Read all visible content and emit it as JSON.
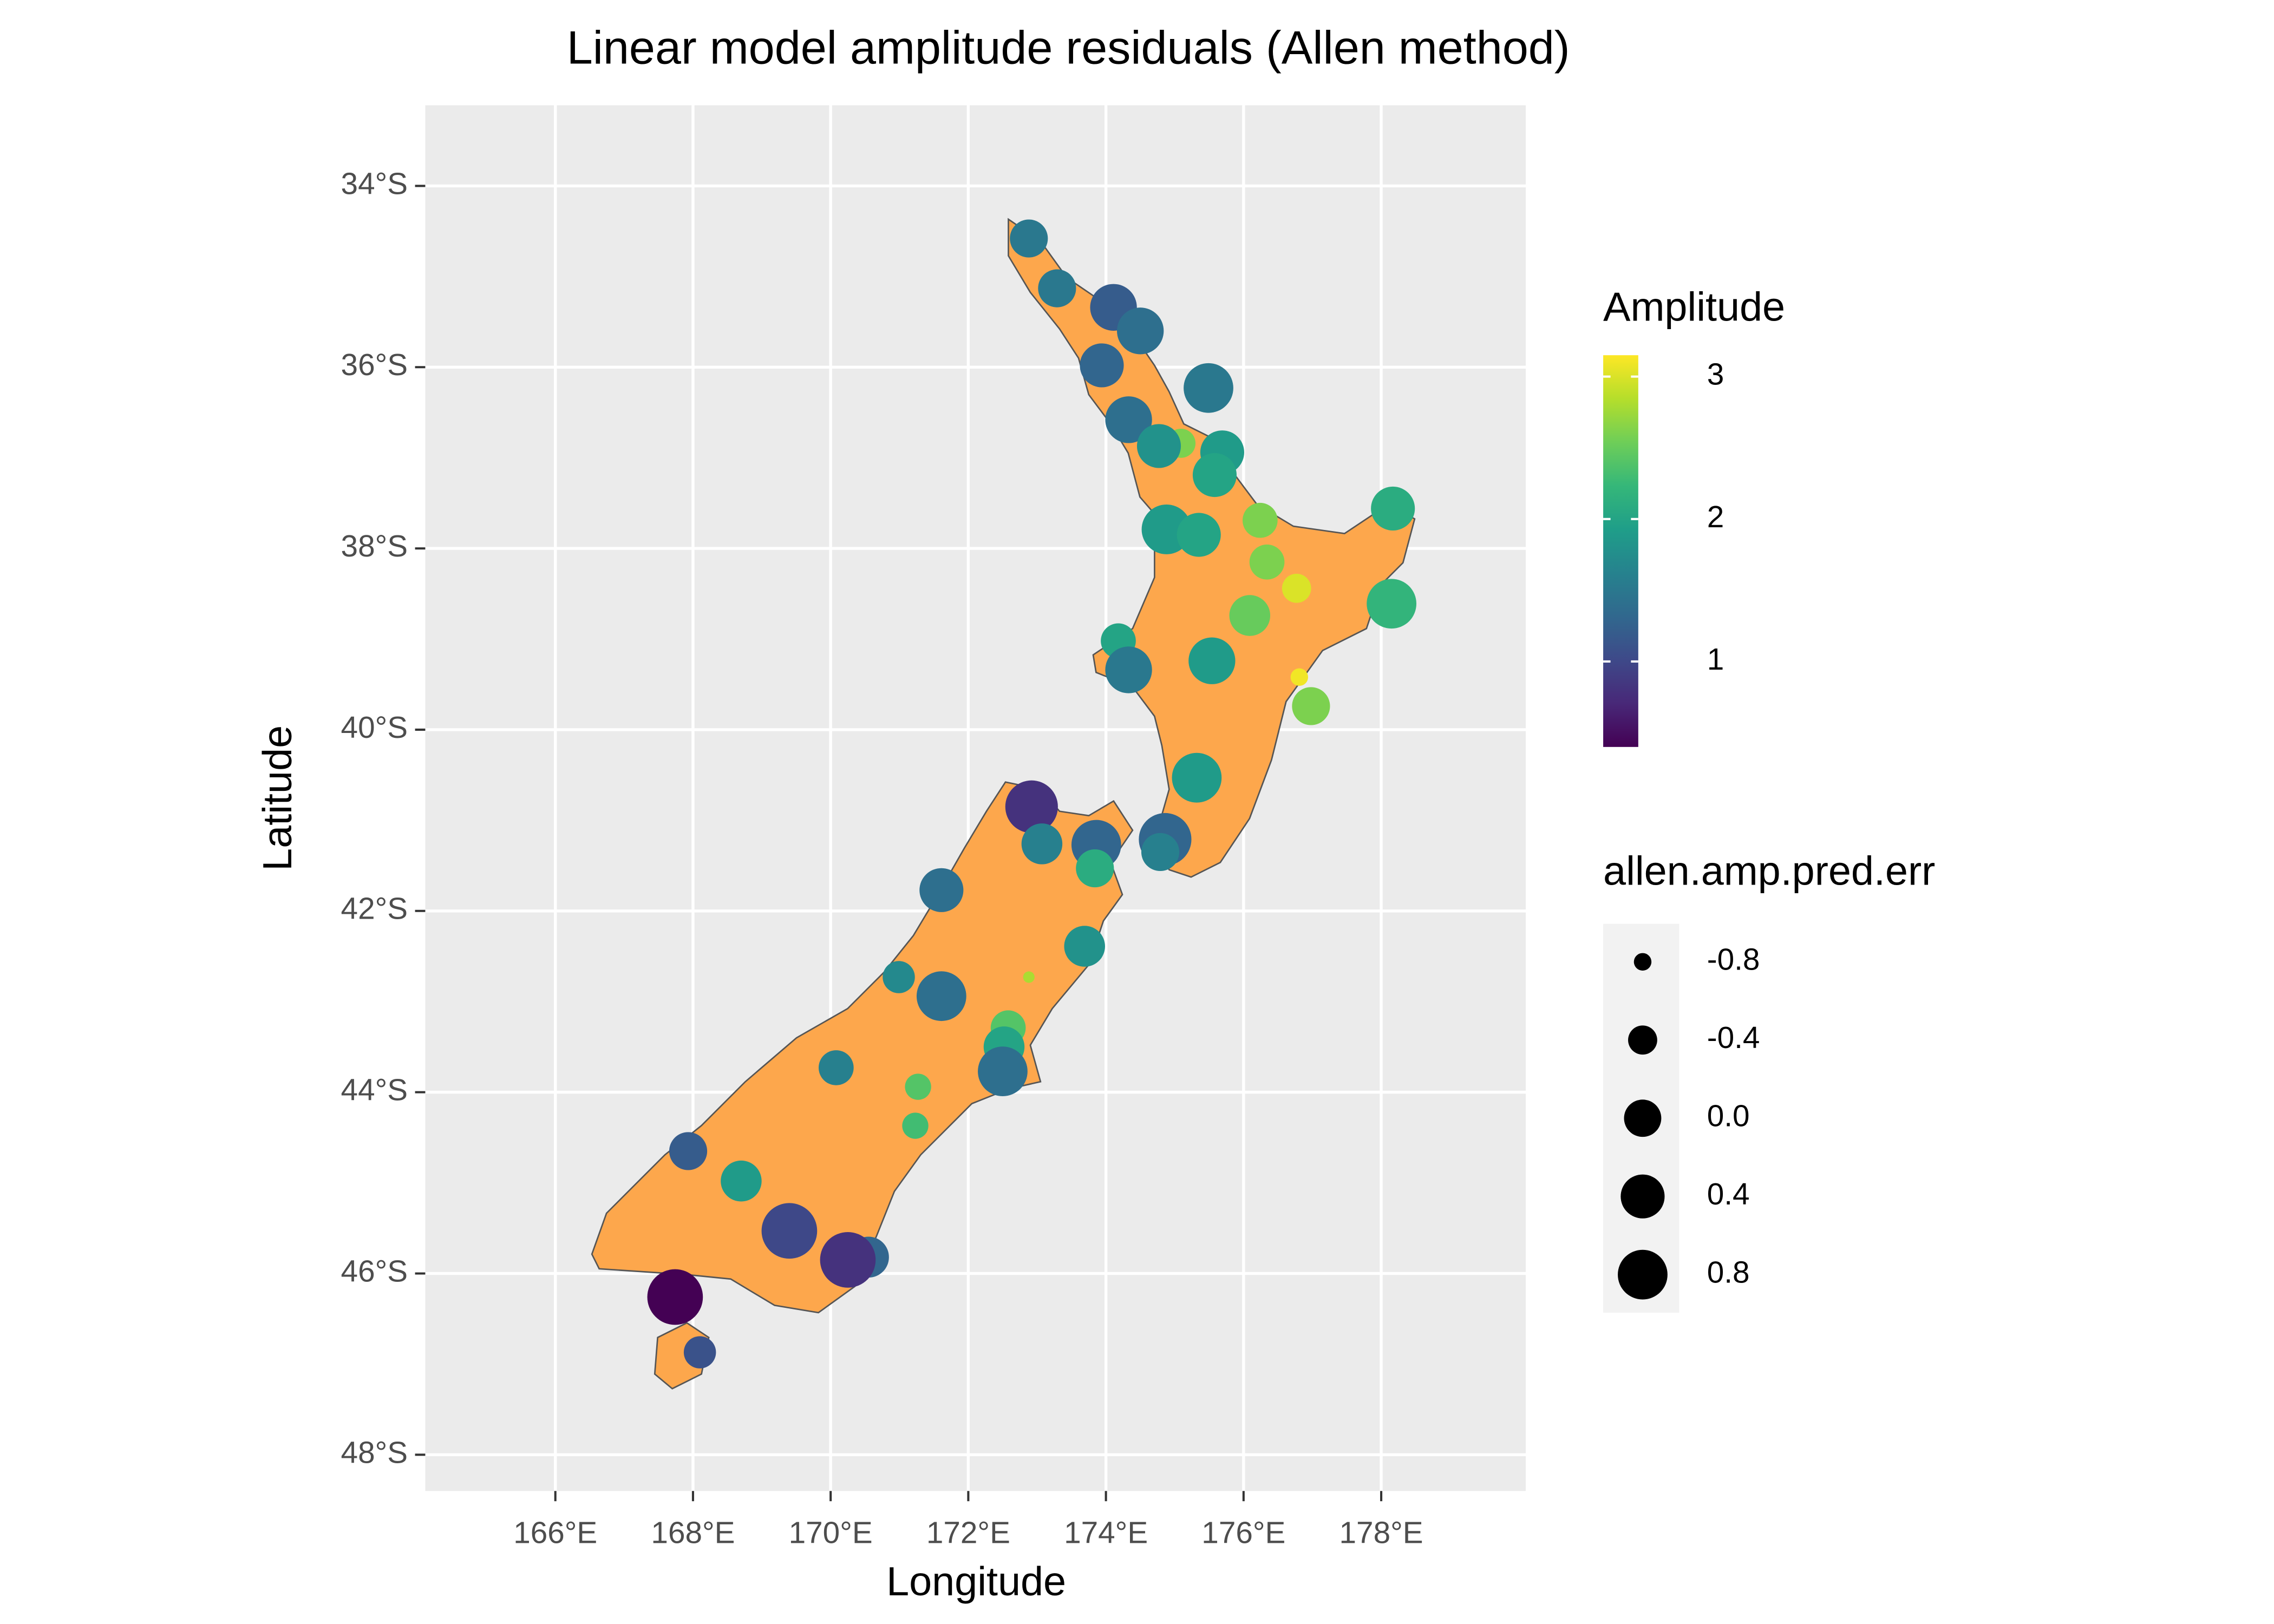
{
  "chart_data": {
    "type": "scatter",
    "title": "Linear model amplitude residuals (Allen method)",
    "x_label": "Longitude",
    "y_label": "Latitude",
    "xlim": [
      164.11,
      180.1
    ],
    "ylim": [
      -48.4,
      -33.11
    ],
    "xticks": [
      {
        "value": 166,
        "label": "166°E"
      },
      {
        "value": 168,
        "label": "168°E"
      },
      {
        "value": 170,
        "label": "170°E"
      },
      {
        "value": 172,
        "label": "172°E"
      },
      {
        "value": 174,
        "label": "174°E"
      },
      {
        "value": 176,
        "label": "176°E"
      },
      {
        "value": 178,
        "label": "178°E"
      }
    ],
    "yticks": [
      {
        "value": -34,
        "label": "34°S"
      },
      {
        "value": -36,
        "label": "36°S"
      },
      {
        "value": -38,
        "label": "38°S"
      },
      {
        "value": -40,
        "label": "40°S"
      },
      {
        "value": -42,
        "label": "42°S"
      },
      {
        "value": -44,
        "label": "44°S"
      },
      {
        "value": -46,
        "label": "46°S"
      },
      {
        "value": -48,
        "label": "48°S"
      }
    ],
    "grid": true,
    "land_color": "#fda74c",
    "x": [
      172.88,
      173.29,
      174.11,
      174.5,
      173.94,
      175.49,
      174.33,
      175.09,
      174.77,
      175.69,
      175.58,
      178.17,
      176.24,
      174.88,
      175.35,
      176.34,
      176.77,
      176.09,
      178.15,
      174.18,
      174.33,
      175.54,
      176.81,
      176.98,
      175.32,
      172.92,
      173.07,
      173.86,
      174.86,
      174.79,
      173.84,
      171.61,
      173.69,
      170.99,
      172.88,
      171.61,
      172.58,
      172.52,
      172.5,
      170.08,
      171.27,
      171.23,
      167.93,
      168.7,
      169.4,
      170.55,
      170.25,
      167.74,
      168.1
    ],
    "y": [
      -34.58,
      -35.13,
      -35.34,
      -35.6,
      -35.98,
      -36.23,
      -36.58,
      -36.84,
      -36.87,
      -36.94,
      -37.19,
      -37.56,
      -37.69,
      -37.79,
      -37.85,
      -38.15,
      -38.44,
      -38.74,
      -38.61,
      -39.02,
      -39.34,
      -39.24,
      -39.42,
      -39.74,
      -40.53,
      -40.85,
      -41.26,
      -41.27,
      -41.21,
      -41.35,
      -41.53,
      -41.77,
      -42.39,
      -42.73,
      -42.73,
      -42.94,
      -43.29,
      -43.5,
      -43.77,
      -43.73,
      -43.94,
      -44.37,
      -44.65,
      -44.98,
      -45.53,
      -45.82,
      -45.85,
      -46.26,
      -46.87
    ],
    "color": [
      1.5,
      1.5,
      1.2,
      1.4,
      1.3,
      1.5,
      1.4,
      2.6,
      1.8,
      1.9,
      2.0,
      2.1,
      2.6,
      1.9,
      2.0,
      2.6,
      3.0,
      2.5,
      2.2,
      2.0,
      1.5,
      1.9,
      3.1,
      2.6,
      1.9,
      0.8,
      1.6,
      1.3,
      1.3,
      1.6,
      2.1,
      1.4,
      1.8,
      1.7,
      2.8,
      1.4,
      2.4,
      2.0,
      1.4,
      1.6,
      2.4,
      2.3,
      1.2,
      1.9,
      1.0,
      1.3,
      0.8,
      0.4,
      1.1
    ],
    "size": [
      0.04,
      0.04,
      0.59,
      0.59,
      0.4,
      0.8,
      0.59,
      -0.4,
      0.4,
      0.4,
      0.4,
      0.4,
      -0.12,
      0.8,
      0.4,
      -0.12,
      -0.4,
      0.21,
      0.8,
      -0.12,
      0.59,
      0.59,
      -0.8,
      0.04,
      0.8,
      1.02,
      0.21,
      0.8,
      1.02,
      0.04,
      0.04,
      0.4,
      0.21,
      -0.26,
      -0.93,
      0.8,
      -0.12,
      0.21,
      0.8,
      -0.12,
      -0.52,
      -0.52,
      0.04,
      0.21,
      1.26,
      0.21,
      1.26,
      1.26,
      -0.26
    ],
    "color_legend": {
      "title": "Amplitude",
      "lim": [
        0.4,
        3.15
      ],
      "ticks": [
        1,
        2,
        3
      ],
      "colorscale": [
        "#440154",
        "#482878",
        "#3e4989",
        "#31688e",
        "#26828e",
        "#1f9e89",
        "#35b779",
        "#6ece58",
        "#b5de2b",
        "#fde725"
      ]
    },
    "size_legend": {
      "title": "allen.amp.pred.err",
      "values": [
        -0.8,
        -0.4,
        {
          "value": 0,
          "label": "0.0"
        },
        0.4,
        0.8
      ]
    }
  }
}
